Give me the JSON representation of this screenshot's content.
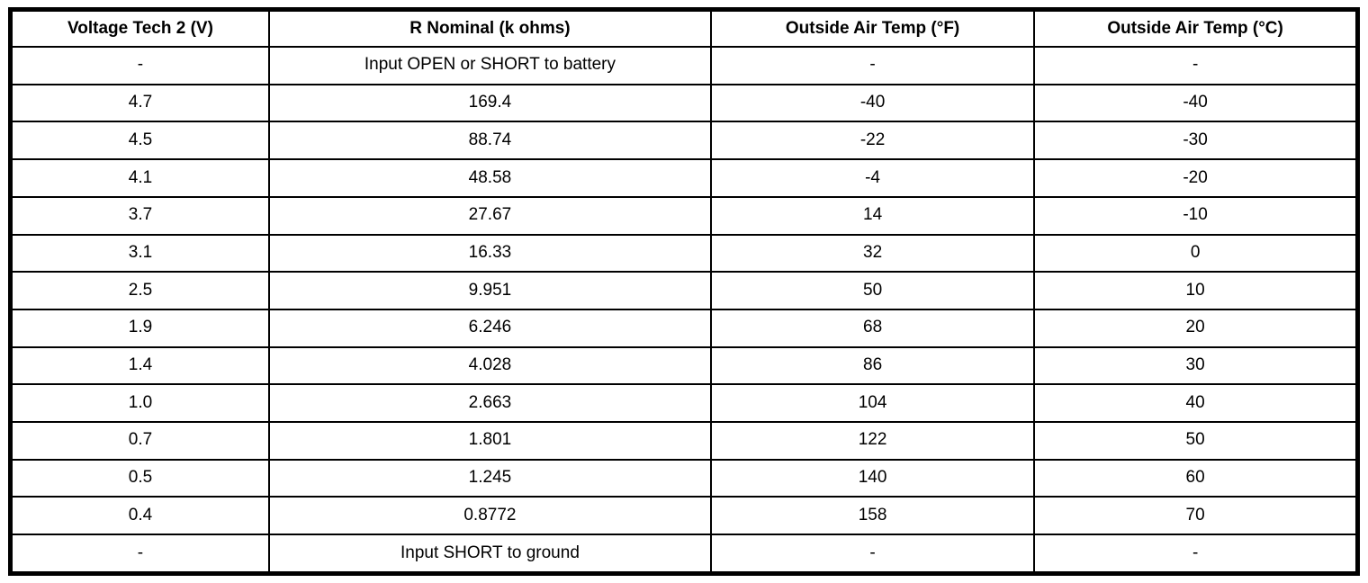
{
  "table": {
    "headers": [
      "Voltage Tech 2 (V)",
      "R Nominal (k ohms)",
      "Outside Air Temp (°F)",
      "Outside Air Temp (°C)"
    ],
    "rows": [
      [
        "-",
        "Input OPEN or SHORT to battery",
        "-",
        "-"
      ],
      [
        "4.7",
        "169.4",
        "-40",
        "-40"
      ],
      [
        "4.5",
        "88.74",
        "-22",
        "-30"
      ],
      [
        "4.1",
        "48.58",
        "-4",
        "-20"
      ],
      [
        "3.7",
        "27.67",
        "14",
        "-10"
      ],
      [
        "3.1",
        "16.33",
        "32",
        "0"
      ],
      [
        "2.5",
        "9.951",
        "50",
        "10"
      ],
      [
        "1.9",
        "6.246",
        "68",
        "20"
      ],
      [
        "1.4",
        "4.028",
        "86",
        "30"
      ],
      [
        "1.0",
        "2.663",
        "104",
        "40"
      ],
      [
        "0.7",
        "1.801",
        "122",
        "50"
      ],
      [
        "0.5",
        "1.245",
        "140",
        "60"
      ],
      [
        "0.4",
        "0.8772",
        "158",
        "70"
      ],
      [
        "-",
        "Input SHORT to ground",
        "-",
        "-"
      ]
    ],
    "colors": {
      "border": "#000000",
      "background": "#ffffff",
      "text": "#000000"
    }
  }
}
